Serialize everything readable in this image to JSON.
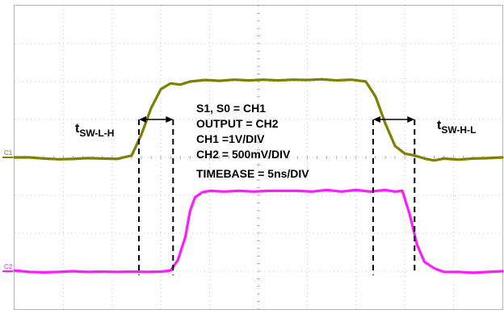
{
  "chart_data": {
    "type": "line",
    "title": "",
    "xlabel": "",
    "ylabel": "",
    "grid": true,
    "grid_divisions": {
      "x": 10,
      "y": 8
    },
    "xlim": [
      0,
      10
    ],
    "ylim": [
      0,
      8
    ],
    "series": [
      {
        "name": "C1",
        "color": "#7f7f00",
        "points": [
          [
            0,
            4.0
          ],
          [
            0.3,
            4.0
          ],
          [
            0.6,
            3.97
          ],
          [
            0.9,
            3.95
          ],
          [
            1.2,
            3.96
          ],
          [
            1.5,
            3.98
          ],
          [
            1.8,
            3.97
          ],
          [
            2.1,
            3.96
          ],
          [
            2.4,
            4.05
          ],
          [
            2.6,
            4.6
          ],
          [
            2.8,
            5.3
          ],
          [
            3.0,
            5.8
          ],
          [
            3.2,
            5.95
          ],
          [
            3.4,
            5.92
          ],
          [
            3.6,
            6.0
          ],
          [
            3.9,
            6.04
          ],
          [
            4.2,
            6.02
          ],
          [
            4.5,
            6.05
          ],
          [
            4.8,
            6.03
          ],
          [
            5.1,
            6.05
          ],
          [
            5.4,
            6.03
          ],
          [
            5.7,
            6.05
          ],
          [
            6.0,
            6.04
          ],
          [
            6.3,
            6.06
          ],
          [
            6.6,
            6.03
          ],
          [
            6.9,
            6.05
          ],
          [
            7.2,
            6.0
          ],
          [
            7.4,
            5.6
          ],
          [
            7.6,
            4.9
          ],
          [
            7.8,
            4.3
          ],
          [
            8.0,
            4.1
          ],
          [
            8.2,
            4.05
          ],
          [
            8.4,
            3.97
          ],
          [
            8.6,
            3.92
          ],
          [
            8.8,
            3.97
          ],
          [
            9.1,
            3.94
          ],
          [
            9.4,
            3.97
          ],
          [
            9.7,
            3.98
          ],
          [
            10,
            4.0
          ]
        ]
      },
      {
        "name": "C2",
        "color": "#ff1aff",
        "points": [
          [
            0,
            1.02
          ],
          [
            0.3,
            0.98
          ],
          [
            0.6,
            0.97
          ],
          [
            0.9,
            0.98
          ],
          [
            1.2,
            1.0
          ],
          [
            1.5,
            0.98
          ],
          [
            1.8,
            0.99
          ],
          [
            2.1,
            0.98
          ],
          [
            2.4,
            0.99
          ],
          [
            2.7,
            0.98
          ],
          [
            3.0,
            0.99
          ],
          [
            3.2,
            1.02
          ],
          [
            3.35,
            1.3
          ],
          [
            3.5,
            1.9
          ],
          [
            3.6,
            2.6
          ],
          [
            3.7,
            2.95
          ],
          [
            3.85,
            3.08
          ],
          [
            4.0,
            3.12
          ],
          [
            4.3,
            3.1
          ],
          [
            4.6,
            3.12
          ],
          [
            4.9,
            3.1
          ],
          [
            5.2,
            3.12
          ],
          [
            5.5,
            3.12
          ],
          [
            5.8,
            3.12
          ],
          [
            6.1,
            3.1
          ],
          [
            6.4,
            3.14
          ],
          [
            6.7,
            3.1
          ],
          [
            7.0,
            3.14
          ],
          [
            7.3,
            3.1
          ],
          [
            7.6,
            3.14
          ],
          [
            7.8,
            3.1
          ],
          [
            7.95,
            3.12
          ],
          [
            8.1,
            2.5
          ],
          [
            8.25,
            1.7
          ],
          [
            8.4,
            1.25
          ],
          [
            8.6,
            1.08
          ],
          [
            8.8,
            0.98
          ],
          [
            9.1,
            0.98
          ],
          [
            9.4,
            0.96
          ],
          [
            9.7,
            0.98
          ],
          [
            10,
            1.0
          ]
        ]
      }
    ],
    "markers": [
      {
        "x": 2.55,
        "from_y": 5.0,
        "to_y": 0.9
      },
      {
        "x": 3.25,
        "from_y": 5.0,
        "to_y": 0.9
      },
      {
        "x": 7.35,
        "from_y": 5.0,
        "to_y": 0.9
      },
      {
        "x": 8.2,
        "from_y": 5.0,
        "to_y": 1.0
      }
    ],
    "arrows": [
      {
        "x1": 2.55,
        "x2": 3.25,
        "y": 5.0
      },
      {
        "x1": 7.35,
        "x2": 8.2,
        "y": 5.0
      }
    ],
    "channel_labels": [
      {
        "text": "C1",
        "y": 4.0,
        "color": "#7f7f00"
      },
      {
        "text": "C2",
        "y": 1.0,
        "color": "#ff1aff"
      }
    ]
  },
  "annotations": {
    "t_sw_lh": {
      "main": "t",
      "sub": "SW-L-H"
    },
    "t_sw_hl": {
      "main": "t",
      "sub": "SW-H-L"
    },
    "settings": [
      "S1, S0 = CH1",
      "OUTPUT = CH2",
      "CH1 =1V/DIV",
      "CH2 = 500mV/DIV",
      "TIMEBASE = 5ns/DIV"
    ]
  }
}
